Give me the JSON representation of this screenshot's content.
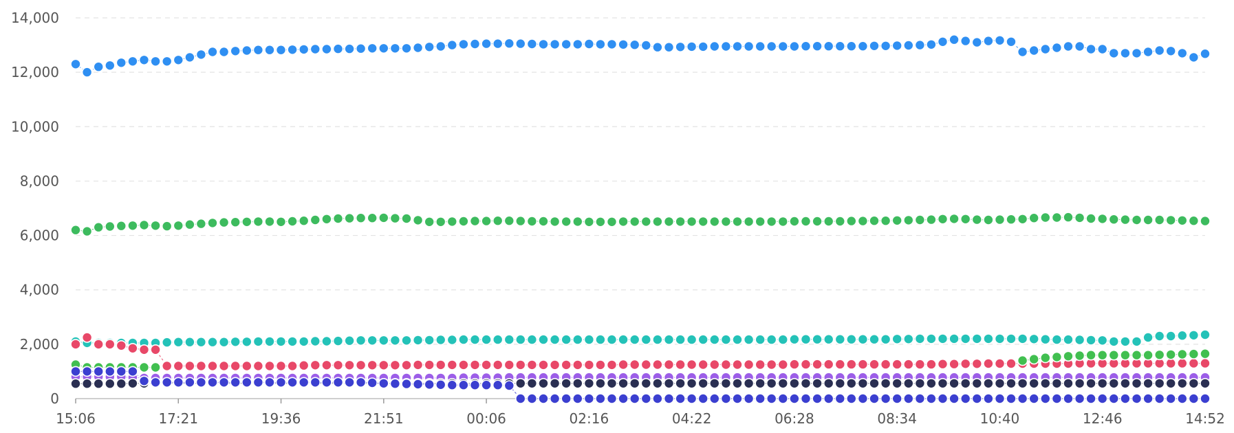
{
  "chart_data": {
    "type": "scatter",
    "title": "",
    "xlabel": "",
    "ylabel": "",
    "ylim": [
      0,
      14000
    ],
    "y_ticks": [
      "0",
      "2,000",
      "4,000",
      "6,000",
      "8,000",
      "10,000",
      "12,000",
      "14,000"
    ],
    "x_ticks": [
      "15:06",
      "17:21",
      "19:36",
      "21:51",
      "00:06",
      "02:16",
      "04:22",
      "06:28",
      "08:34",
      "10:40",
      "12:46",
      "14:52"
    ],
    "x_start": "15:06",
    "x_end": "14:52",
    "grid": true,
    "legend": "none",
    "point_count": 100,
    "series": [
      {
        "color": "#2f8ff2",
        "values": [
          12300,
          12000,
          12200,
          12250,
          12350,
          12400,
          12450,
          12400,
          12400,
          12450,
          12550,
          12650,
          12750,
          12750,
          12780,
          12800,
          12820,
          12820,
          12820,
          12830,
          12840,
          12850,
          12850,
          12860,
          12860,
          12870,
          12880,
          12880,
          12880,
          12880,
          12900,
          12930,
          12950,
          13000,
          13030,
          13040,
          13050,
          13050,
          13060,
          13050,
          13040,
          13030,
          13030,
          13030,
          13030,
          13040,
          13030,
          13030,
          13020,
          13010,
          12990,
          12920,
          12920,
          12930,
          12940,
          12940,
          12950,
          12950,
          12950,
          12950,
          12950,
          12950,
          12950,
          12950,
          12960,
          12960,
          12960,
          12960,
          12960,
          12960,
          12970,
          12970,
          12980,
          12990,
          13000,
          13020,
          13120,
          13200,
          13150,
          13100,
          13150,
          13170,
          13120,
          12750,
          12800,
          12850,
          12900,
          12950,
          12950,
          12850,
          12850,
          12700,
          12700,
          12700,
          12750,
          12800,
          12780,
          12700,
          12550,
          12680
        ]
      },
      {
        "color": "#3dbb5e",
        "values": [
          6200,
          6150,
          6300,
          6330,
          6350,
          6360,
          6380,
          6360,
          6340,
          6360,
          6400,
          6430,
          6460,
          6480,
          6490,
          6500,
          6510,
          6510,
          6500,
          6520,
          6540,
          6570,
          6600,
          6620,
          6630,
          6640,
          6640,
          6650,
          6630,
          6620,
          6560,
          6500,
          6500,
          6510,
          6520,
          6530,
          6530,
          6540,
          6540,
          6530,
          6520,
          6520,
          6510,
          6510,
          6510,
          6500,
          6500,
          6500,
          6510,
          6510,
          6510,
          6510,
          6510,
          6510,
          6510,
          6510,
          6510,
          6510,
          6510,
          6510,
          6510,
          6510,
          6510,
          6520,
          6520,
          6520,
          6520,
          6520,
          6530,
          6530,
          6540,
          6540,
          6550,
          6560,
          6570,
          6580,
          6600,
          6610,
          6600,
          6580,
          6570,
          6580,
          6590,
          6600,
          6640,
          6660,
          6660,
          6670,
          6650,
          6620,
          6610,
          6590,
          6580,
          6570,
          6570,
          6570,
          6560,
          6550,
          6540,
          6530
        ]
      },
      {
        "color": "#24c2b8",
        "values": [
          2100,
          2050,
          2050,
          2050,
          2050,
          2050,
          2050,
          2050,
          2070,
          2080,
          2080,
          2080,
          2080,
          2080,
          2090,
          2090,
          2100,
          2100,
          2100,
          2100,
          2100,
          2110,
          2110,
          2120,
          2130,
          2140,
          2140,
          2140,
          2140,
          2140,
          2150,
          2150,
          2160,
          2160,
          2170,
          2170,
          2170,
          2170,
          2170,
          2170,
          2170,
          2170,
          2170,
          2170,
          2170,
          2170,
          2170,
          2170,
          2170,
          2170,
          2170,
          2170,
          2170,
          2170,
          2170,
          2170,
          2170,
          2170,
          2170,
          2170,
          2170,
          2170,
          2170,
          2180,
          2180,
          2180,
          2180,
          2180,
          2180,
          2180,
          2180,
          2180,
          2190,
          2190,
          2200,
          2200,
          2200,
          2200,
          2200,
          2200,
          2200,
          2200,
          2200,
          2200,
          2190,
          2180,
          2170,
          2170,
          2160,
          2150,
          2140,
          2100,
          2100,
          2100,
          2250,
          2300,
          2300,
          2320,
          2330,
          2350
        ]
      },
      {
        "color": "#e84868",
        "values": [
          2000,
          2250,
          2000,
          2000,
          1950,
          1850,
          1800,
          1800,
          1200,
          1200,
          1200,
          1200,
          1200,
          1200,
          1200,
          1200,
          1200,
          1200,
          1200,
          1200,
          1220,
          1230,
          1230,
          1230,
          1230,
          1230,
          1230,
          1230,
          1230,
          1230,
          1240,
          1240,
          1240,
          1240,
          1240,
          1240,
          1240,
          1240,
          1240,
          1240,
          1240,
          1240,
          1240,
          1240,
          1240,
          1240,
          1240,
          1240,
          1250,
          1250,
          1250,
          1250,
          1250,
          1250,
          1250,
          1250,
          1250,
          1250,
          1250,
          1250,
          1250,
          1250,
          1250,
          1260,
          1260,
          1260,
          1260,
          1260,
          1260,
          1260,
          1260,
          1260,
          1260,
          1260,
          1260,
          1260,
          1270,
          1270,
          1280,
          1280,
          1290,
          1290,
          1290,
          1290,
          1290,
          1290,
          1290,
          1290,
          1300,
          1300,
          1300,
          1300,
          1300,
          1300,
          1300,
          1300,
          1300,
          1300,
          1300,
          1300
        ]
      },
      {
        "color": "#41bf50",
        "values": [
          1250,
          1150,
          1150,
          1150,
          1150,
          1150,
          1150,
          1150,
          null,
          null,
          null,
          null,
          null,
          null,
          null,
          null,
          null,
          null,
          null,
          null,
          null,
          null,
          null,
          null,
          null,
          null,
          null,
          null,
          null,
          null,
          null,
          null,
          null,
          null,
          null,
          null,
          null,
          null,
          null,
          null,
          null,
          null,
          null,
          null,
          null,
          null,
          null,
          null,
          null,
          null,
          null,
          null,
          null,
          null,
          null,
          null,
          null,
          null,
          null,
          null,
          null,
          null,
          null,
          null,
          null,
          null,
          null,
          null,
          null,
          null,
          null,
          null,
          null,
          null,
          null,
          null,
          null,
          null,
          null,
          null,
          null,
          null,
          null,
          1400,
          1450,
          1500,
          1530,
          1560,
          1580,
          1600,
          1600,
          1600,
          1600,
          1600,
          1600,
          1610,
          1620,
          1630,
          1640,
          1650
        ]
      },
      {
        "color": "#9c5ee8",
        "values": [
          800,
          800,
          800,
          800,
          800,
          780,
          760,
          760,
          760,
          760,
          760,
          760,
          760,
          760,
          760,
          760,
          760,
          760,
          760,
          760,
          760,
          760,
          760,
          760,
          760,
          760,
          760,
          760,
          760,
          760,
          760,
          760,
          760,
          760,
          770,
          770,
          770,
          770,
          780,
          780,
          780,
          780,
          780,
          780,
          780,
          780,
          780,
          780,
          780,
          780,
          780,
          780,
          780,
          780,
          780,
          780,
          780,
          780,
          780,
          780,
          780,
          780,
          780,
          780,
          780,
          780,
          780,
          780,
          780,
          780,
          780,
          780,
          780,
          780,
          780,
          780,
          780,
          780,
          780,
          780,
          780,
          780,
          780,
          780,
          780,
          780,
          780,
          780,
          780,
          780,
          780,
          780,
          780,
          780,
          780,
          780,
          780,
          780,
          780,
          780
        ]
      },
      {
        "color": "#2a2f52",
        "values": [
          550,
          550,
          550,
          550,
          550,
          560,
          560,
          560,
          560,
          560,
          560,
          560,
          560,
          560,
          560,
          560,
          560,
          560,
          560,
          560,
          560,
          560,
          560,
          560,
          560,
          560,
          560,
          560,
          560,
          560,
          560,
          560,
          560,
          560,
          560,
          560,
          560,
          560,
          560,
          560,
          560,
          560,
          560,
          560,
          560,
          560,
          560,
          560,
          560,
          560,
          560,
          560,
          560,
          560,
          560,
          560,
          560,
          560,
          560,
          560,
          560,
          560,
          560,
          560,
          560,
          560,
          560,
          560,
          560,
          560,
          560,
          560,
          560,
          560,
          560,
          560,
          560,
          560,
          560,
          560,
          560,
          560,
          560,
          560,
          560,
          560,
          560,
          560,
          560,
          560,
          560,
          560,
          560,
          560,
          560,
          560,
          560,
          560,
          560,
          560
        ]
      },
      {
        "color": "#3b3fd0",
        "values": [
          1000,
          1000,
          1000,
          1000,
          1000,
          1000,
          650,
          600,
          600,
          600,
          600,
          600,
          600,
          600,
          600,
          600,
          600,
          600,
          600,
          600,
          600,
          600,
          600,
          600,
          600,
          600,
          580,
          560,
          550,
          540,
          530,
          520,
          510,
          500,
          500,
          500,
          500,
          500,
          480,
          0,
          0,
          0,
          0,
          0,
          0,
          0,
          0,
          0,
          0,
          0,
          0,
          0,
          0,
          0,
          0,
          0,
          0,
          0,
          0,
          0,
          0,
          0,
          0,
          0,
          0,
          0,
          0,
          0,
          0,
          0,
          0,
          0,
          0,
          0,
          0,
          0,
          0,
          0,
          0,
          0,
          0,
          0,
          0,
          0,
          0,
          0,
          0,
          0,
          0,
          0,
          0,
          0,
          0,
          0,
          0,
          0,
          0,
          0,
          0,
          0
        ]
      }
    ]
  }
}
